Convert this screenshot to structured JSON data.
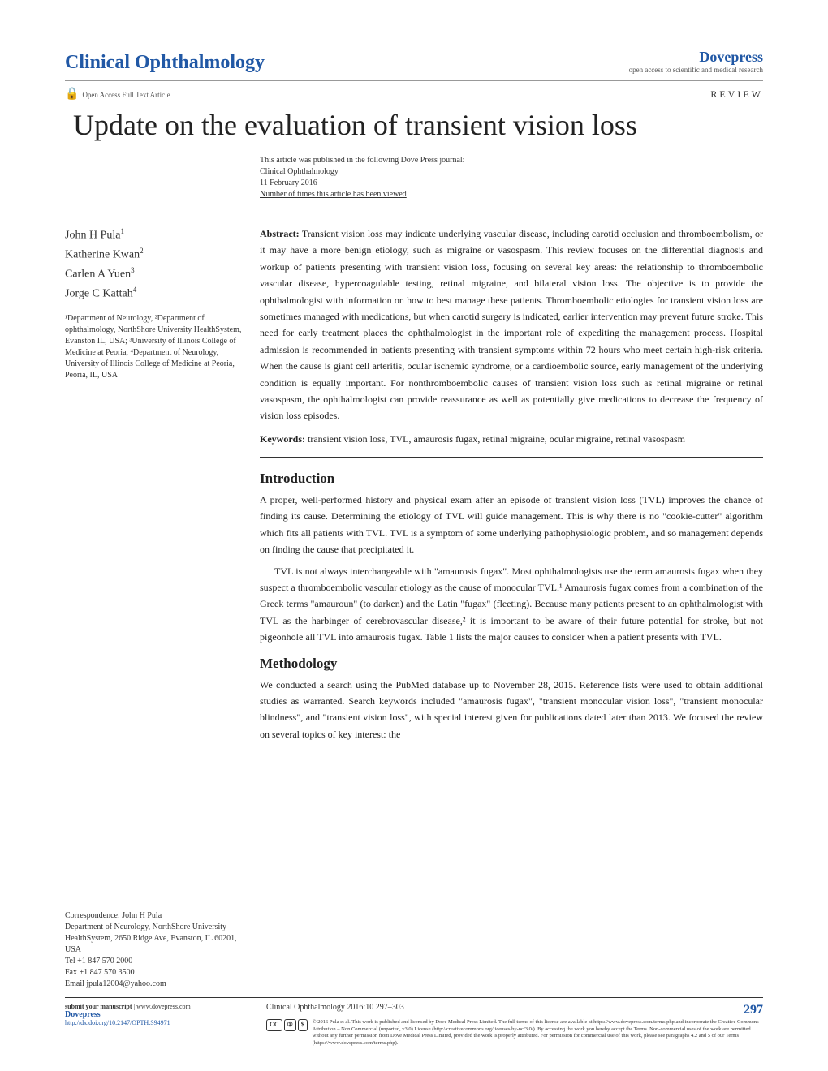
{
  "header": {
    "journal_name": "Clinical Ophthalmology",
    "brand": "Dovepress",
    "tagline": "open access to scientific and medical research",
    "open_access_label": "Open Access Full Text Article",
    "article_type": "REVIEW"
  },
  "colors": {
    "brand_blue": "#2158a5",
    "accent_orange": "#e67817",
    "text_dark": "#222222",
    "text_gray": "#555555",
    "border": "#333333"
  },
  "article": {
    "title": "Update on the evaluation of transient vision loss",
    "pub_info_line1": "This article was published in the following Dove Press journal:",
    "pub_info_line2": "Clinical Ophthalmology",
    "pub_date": "11 February 2016",
    "views_link": "Number of times this article has been viewed"
  },
  "authors": {
    "a1": "John H Pula",
    "a1_sup": "1",
    "a2": "Katherine Kwan",
    "a2_sup": "2",
    "a3": "Carlen A Yuen",
    "a3_sup": "3",
    "a4": "Jorge C Kattah",
    "a4_sup": "4"
  },
  "affiliations": {
    "text": "¹Department of Neurology, ²Department of ophthalmology, NorthShore University HealthSystem, Evanston IL, USA; ³University of Illinois College of Medicine at Peoria, ⁴Department of Neurology, University of Illinois College of Medicine at Peoria, Peoria, IL, USA"
  },
  "abstract": {
    "label": "Abstract:",
    "text": " Transient vision loss may indicate underlying vascular disease, including carotid occlusion and thromboembolism, or it may have a more benign etiology, such as migraine or vasospasm. This review focuses on the differential diagnosis and workup of patients presenting with transient vision loss, focusing on several key areas: the relationship to thromboembolic vascular disease, hypercoagulable testing, retinal migraine, and bilateral vision loss. The objective is to provide the ophthalmologist with information on how to best manage these patients. Thromboembolic etiologies for transient vision loss are sometimes managed with medications, but when carotid surgery is indicated, earlier intervention may prevent future stroke. This need for early treatment places the ophthalmologist in the important role of expediting the management process. Hospital admission is recommended in patients presenting with transient symptoms within 72 hours who meet certain high-risk criteria. When the cause is giant cell arteritis, ocular ischemic syndrome, or a cardioembolic source, early management of the underlying condition is equally important. For nonthromboembolic causes of transient vision loss such as retinal migraine or retinal vasospasm, the ophthalmologist can provide reassurance as well as potentially give medications to decrease the frequency of vision loss episodes.",
    "keywords_label": "Keywords:",
    "keywords": " transient vision loss, TVL, amaurosis fugax, retinal migraine, ocular migraine, retinal vasospasm"
  },
  "sections": {
    "intro_heading": "Introduction",
    "intro_p1": "A proper, well-performed history and physical exam after an episode of transient vision loss (TVL) improves the chance of finding its cause. Determining the etiology of TVL will guide management. This is why there is no \"cookie-cutter\" algorithm which fits all patients with TVL. TVL is a symptom of some underlying pathophysiologic problem, and so management depends on finding the cause that precipitated it.",
    "intro_p2": "TVL is not always interchangeable with \"amaurosis fugax\". Most ophthalmologists use the term amaurosis fugax when they suspect a thromboembolic vascular etiology as the cause of monocular TVL.¹ Amaurosis fugax comes from a combination of the Greek terms \"amauroun\" (to darken) and the Latin \"fugax\" (fleeting). Because many patients present to an ophthalmologist with TVL as the harbinger of cerebrovascular disease,² it is important to be aware of their future potential for stroke, but not pigeonhole all TVL into amaurosis fugax. Table 1 lists the major causes to consider when a patient presents with TVL.",
    "method_heading": "Methodology",
    "method_p1": "We conducted a search using the PubMed database up to November 28, 2015. Reference lists were used to obtain additional studies as warranted. Search keywords included \"amaurosis fugax\", \"transient monocular vision loss\", \"transient monocular blindness\", and \"transient vision loss\", with special interest given for publications dated later than 2013. We focused the review on several topics of key interest: the"
  },
  "correspondence": {
    "label": "Correspondence: John H Pula",
    "address": "Department of Neurology, NorthShore University HealthSystem, 2650 Ridge Ave, Evanston, IL 60201, USA",
    "tel": "Tel +1 847 570 2000",
    "fax": "Fax +1 847 570 3500",
    "email": "Email jpula12004@yahoo.com"
  },
  "footer": {
    "submit_label": "submit your manuscript",
    "submit_url": " | www.dovepress.com",
    "dove_brand": "Dovepress",
    "doi": "http://dx.doi.org/10.2147/OPTH.S94971",
    "citation": "Clinical Ophthalmology 2016:10 297–303",
    "page_number": "297",
    "cc_label": "CC",
    "license_text": "© 2016 Pula et al. This work is published and licensed by Dove Medical Press Limited. The full terms of this license are available at https://www.dovepress.com/terms.php and incorporate the Creative Commons Attribution – Non Commercial (unported, v3.0) License (http://creativecommons.org/licenses/by-nc/3.0/). By accessing the work you hereby accept the Terms. Non-commercial uses of the work are permitted without any further permission from Dove Medical Press Limited, provided the work is properly attributed. For permission for commercial use of this work, please see paragraphs 4.2 and 5 of our Terms (https://www.dovepress.com/terms.php)."
  }
}
